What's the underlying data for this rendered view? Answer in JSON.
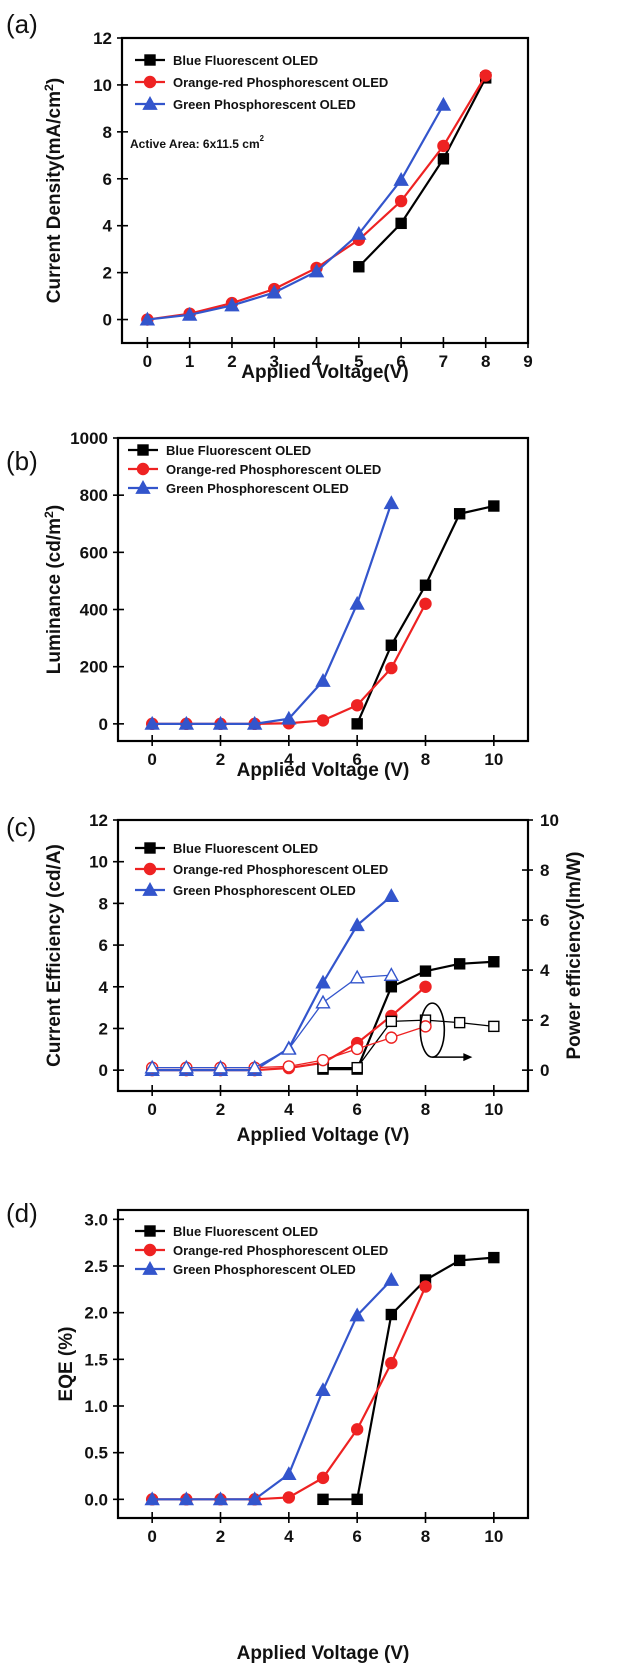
{
  "chart_data": [
    {
      "panel": "(a)",
      "type": "line",
      "xlabel": "Applied Voltage(V)",
      "ylabel": "Current Density(mA/cm",
      "ylabel_sup": "2",
      "ylabel_tail": ")",
      "xlim": [
        -0.6,
        9
      ],
      "ylim": [
        -1,
        12
      ],
      "xticks": [
        "0",
        "1",
        "2",
        "3",
        "4",
        "5",
        "6",
        "7",
        "8",
        "9"
      ],
      "yticks": [
        "0",
        "2",
        "4",
        "6",
        "8",
        "10",
        "12"
      ],
      "annotation": "Active Area: 6x11.5 cm",
      "annotation_sup": "2",
      "legend": [
        "Blue Fluorescent OLED",
        "Orange-red Phosphorescent OLED",
        "Green Phosphorescent OLED"
      ],
      "series": [
        {
          "name": "Blue Fluorescent OLED",
          "color": "#000000",
          "marker": "square",
          "x": [
            5,
            6,
            7,
            8
          ],
          "y": [
            2.25,
            4.1,
            6.85,
            10.3
          ]
        },
        {
          "name": "Orange-red Phosphorescent OLED",
          "color": "#ee2222",
          "marker": "circle",
          "x": [
            0,
            1,
            2,
            3,
            4,
            5,
            6,
            7,
            8
          ],
          "y": [
            0,
            0.25,
            0.7,
            1.3,
            2.2,
            3.4,
            5.05,
            7.4,
            10.4
          ]
        },
        {
          "name": "Green Phosphorescent OLED",
          "color": "#3355cc",
          "marker": "triangle",
          "x": [
            0,
            1,
            2,
            3,
            4,
            5,
            6,
            7
          ],
          "y": [
            0,
            0.2,
            0.6,
            1.15,
            2.05,
            3.65,
            5.95,
            9.15
          ]
        }
      ]
    },
    {
      "panel": "(b)",
      "type": "line",
      "xlabel": "Applied Voltage (V)",
      "ylabel": "Luminance (cd/m",
      "ylabel_sup": "2",
      "ylabel_tail": ")",
      "xlim": [
        -1,
        11
      ],
      "ylim": [
        -60,
        1000
      ],
      "xticks": [
        "0",
        "2",
        "4",
        "6",
        "8",
        "10"
      ],
      "yticks": [
        "0",
        "200",
        "400",
        "600",
        "800",
        "1000"
      ],
      "legend": [
        "Blue Fluorescent OLED",
        "Orange-red Phosphorescent OLED",
        "Green Phosphorescent OLED"
      ],
      "series": [
        {
          "name": "Blue Fluorescent OLED",
          "color": "#000000",
          "marker": "square",
          "x": [
            6,
            7,
            8,
            9,
            10
          ],
          "y": [
            0,
            275,
            485,
            735,
            762
          ]
        },
        {
          "name": "Orange-red Phosphorescent OLED",
          "color": "#ee2222",
          "marker": "circle",
          "x": [
            0,
            1,
            2,
            3,
            4,
            5,
            6,
            7,
            8
          ],
          "y": [
            0,
            0,
            0,
            0,
            2,
            12,
            65,
            195,
            420
          ]
        },
        {
          "name": "Green Phosphorescent OLED",
          "color": "#3355cc",
          "marker": "triangle",
          "x": [
            0,
            1,
            2,
            3,
            4,
            5,
            6,
            7
          ],
          "y": [
            0,
            0,
            0,
            0,
            18,
            150,
            420,
            772
          ]
        }
      ]
    },
    {
      "panel": "(c)",
      "type": "line",
      "xlabel": "Applied Voltage (V)",
      "ylabel": "Current Efficiency (cd/A)",
      "y2label": "Power efficiency(lm/W)",
      "xlim": [
        -1,
        11
      ],
      "ylim": [
        -1,
        12
      ],
      "y2lim": [
        -0.8333,
        10
      ],
      "xticks": [
        "0",
        "2",
        "4",
        "6",
        "8",
        "10"
      ],
      "yticks": [
        "0",
        "2",
        "4",
        "6",
        "8",
        "10",
        "12"
      ],
      "y2ticks": [
        "0",
        "2",
        "4",
        "6",
        "8",
        "10"
      ],
      "legend": [
        "Blue Fluorescent OLED",
        "Orange-red Phosphorescent OLED",
        "Green Phosphorescent OLED"
      ],
      "series": [
        {
          "name": "Blue Fluorescent OLED",
          "color": "#000000",
          "marker": "square",
          "x": [
            5,
            6,
            7,
            8,
            9,
            10
          ],
          "y": [
            0.05,
            0.05,
            4.0,
            4.75,
            5.1,
            5.2
          ]
        },
        {
          "name": "Orange-red Phosphorescent OLED",
          "color": "#ee2222",
          "marker": "circle",
          "x": [
            0,
            1,
            2,
            3,
            4,
            5,
            6,
            7,
            8
          ],
          "y": [
            0,
            0,
            0,
            0,
            0.1,
            0.35,
            1.3,
            2.6,
            4.0
          ]
        },
        {
          "name": "Green Phosphorescent OLED",
          "color": "#3355cc",
          "marker": "triangle",
          "x": [
            0,
            1,
            2,
            3,
            4,
            5,
            6,
            7
          ],
          "y": [
            0,
            0,
            0,
            0,
            1.05,
            4.2,
            6.95,
            8.35
          ]
        }
      ],
      "series_y2": [
        {
          "color": "#000000",
          "marker": "square-open",
          "x": [
            5,
            6,
            7,
            8,
            9,
            10
          ],
          "y": [
            0.1,
            0.1,
            1.95,
            2.0,
            1.9,
            1.75
          ]
        },
        {
          "color": "#ee2222",
          "marker": "circle-open",
          "x": [
            0,
            1,
            2,
            3,
            4,
            5,
            6,
            7,
            8
          ],
          "y": [
            0.1,
            0.1,
            0.1,
            0.1,
            0.15,
            0.4,
            0.85,
            1.3,
            1.75
          ]
        },
        {
          "color": "#3355cc",
          "marker": "triangle-open",
          "x": [
            0,
            1,
            2,
            3,
            4,
            5,
            6,
            7
          ],
          "y": [
            0.1,
            0.1,
            0.1,
            0.1,
            0.85,
            2.7,
            3.7,
            3.8
          ]
        }
      ]
    },
    {
      "panel": "(d)",
      "type": "line",
      "xlabel": "Applied Voltage (V)",
      "ylabel": "EQE (%)",
      "xlim": [
        -1,
        11
      ],
      "ylim": [
        -0.2,
        3.1
      ],
      "xticks": [
        "0",
        "2",
        "4",
        "6",
        "8",
        "10"
      ],
      "yticks": [
        "0.0",
        "0.5",
        "1.0",
        "1.5",
        "2.0",
        "2.5",
        "3.0"
      ],
      "legend": [
        "Blue Fluorescent OLED",
        "Orange-red Phosphorescent OLED",
        "Green Phosphorescent OLED"
      ],
      "series": [
        {
          "name": "Blue Fluorescent OLED",
          "color": "#000000",
          "marker": "square",
          "x": [
            5,
            6,
            7,
            8,
            9,
            10
          ],
          "y": [
            0,
            0,
            1.98,
            2.35,
            2.56,
            2.59
          ]
        },
        {
          "name": "Orange-red Phosphorescent OLED",
          "color": "#ee2222",
          "marker": "circle",
          "x": [
            0,
            1,
            2,
            3,
            4,
            5,
            6,
            7,
            8
          ],
          "y": [
            0,
            0,
            0,
            0,
            0.02,
            0.23,
            0.75,
            1.46,
            2.28
          ]
        },
        {
          "name": "Green Phosphorescent OLED",
          "color": "#3355cc",
          "marker": "triangle",
          "x": [
            0,
            1,
            2,
            3,
            4,
            5,
            6,
            7
          ],
          "y": [
            0,
            0,
            0,
            0,
            0.27,
            1.17,
            1.97,
            2.35
          ]
        }
      ]
    }
  ]
}
